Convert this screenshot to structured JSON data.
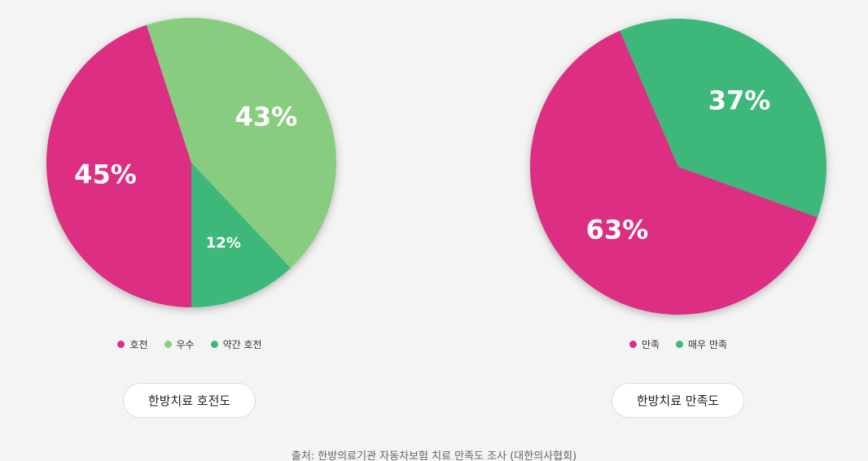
{
  "chart_data": [
    {
      "type": "pie",
      "categories": [
        "호전",
        "우수",
        "약간 호전"
      ],
      "values": [
        45,
        43,
        12
      ],
      "value_labels": [
        "45%",
        "43%",
        "12%"
      ],
      "colors": [
        "#dc2f82",
        "#88cc80",
        "#3db87a"
      ]
    },
    {
      "type": "pie",
      "categories": [
        "만족",
        "매우 만족"
      ],
      "values": [
        63,
        37
      ],
      "value_labels": [
        "63%",
        "37%"
      ],
      "colors": [
        "#dc2f82",
        "#3db87a"
      ]
    }
  ],
  "buttons": [
    "한방치료 호전도",
    "한방치료 만족도"
  ],
  "source": "출처: 한방의료기관 자동차보험 치료 만족도 조사 (대한의사협회)"
}
